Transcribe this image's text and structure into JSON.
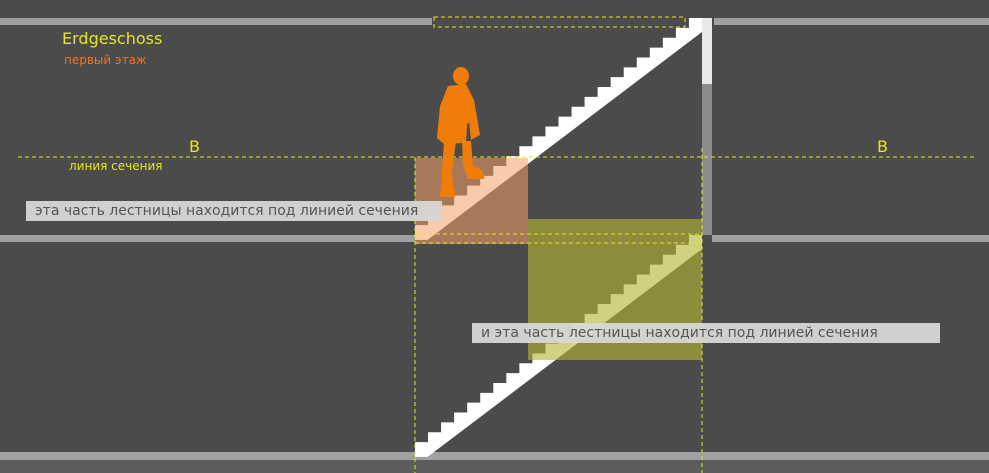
{
  "labels": {
    "floor_title": "Erdgeschoss",
    "floor_subtitle": "первый этаж",
    "section_mark_left": "B",
    "section_mark_right": "B",
    "section_line_label": "линия сечения"
  },
  "notes": {
    "upper_note": "эта часть лестницы находится  под  линией сечения",
    "lower_note": "и эта часть лестницы находится  под  линией сечения"
  },
  "colors": {
    "background": "#4b4b4b",
    "slab": "#a0a0a0",
    "stair": "#ffffff",
    "section_line": "#e6e61e",
    "person": "#f07d0a",
    "highlight_upper": "#f5a064",
    "highlight_lower": "#b4b432",
    "note_box": "#d7d7d7"
  }
}
